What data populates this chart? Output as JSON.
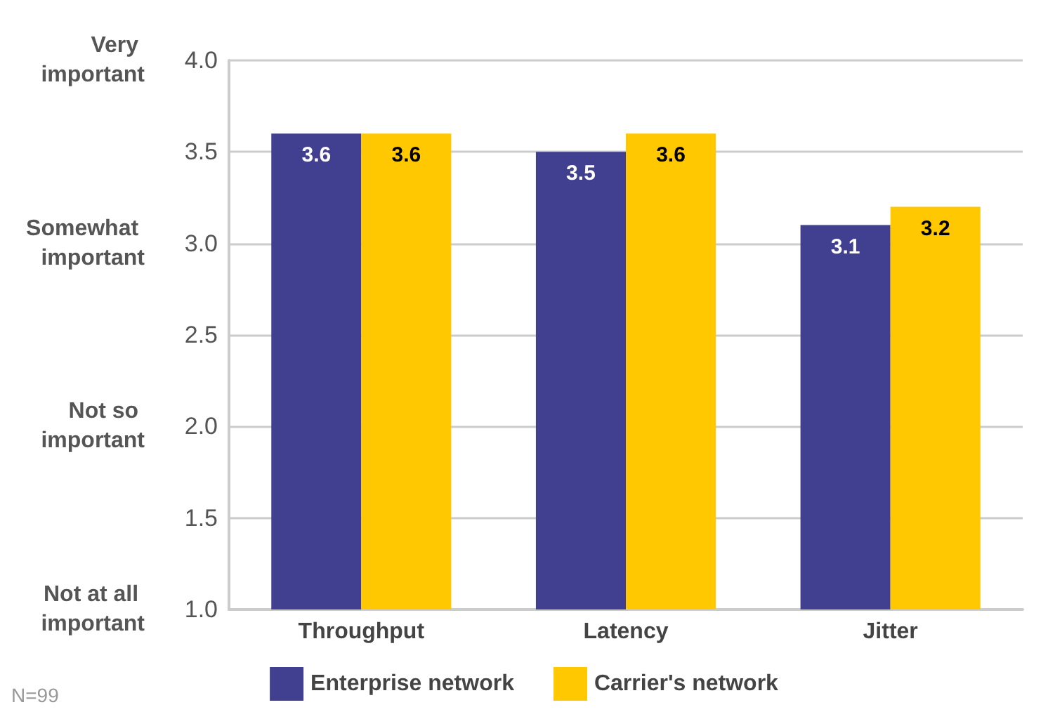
{
  "chart_data": {
    "type": "bar",
    "categories": [
      "Throughput",
      "Latency",
      "Jitter"
    ],
    "series": [
      {
        "name": "Enterprise network",
        "color": "#413f8f",
        "values": [
          3.6,
          3.5,
          3.1
        ]
      },
      {
        "name": "Carrier's network",
        "color": "#ffc800",
        "values": [
          3.6,
          3.6,
          3.2
        ]
      }
    ],
    "ylim": [
      1,
      4
    ],
    "yticks": [
      {
        "value": 1,
        "label": "1.0"
      },
      {
        "value": 1.5,
        "label": "1.5"
      },
      {
        "value": 2,
        "label": "2.0"
      },
      {
        "value": 2.5,
        "label": "2.5"
      },
      {
        "value": 3,
        "label": "3.0"
      },
      {
        "value": 3.5,
        "label": "3.5"
      },
      {
        "value": 4,
        "label": "4.0"
      }
    ],
    "grid": "y",
    "legend": "bottom",
    "data_labels": true,
    "annotations": [
      "Very important",
      "Somewhat important",
      "Not so important",
      "Not at all important",
      "N=99"
    ]
  }
}
